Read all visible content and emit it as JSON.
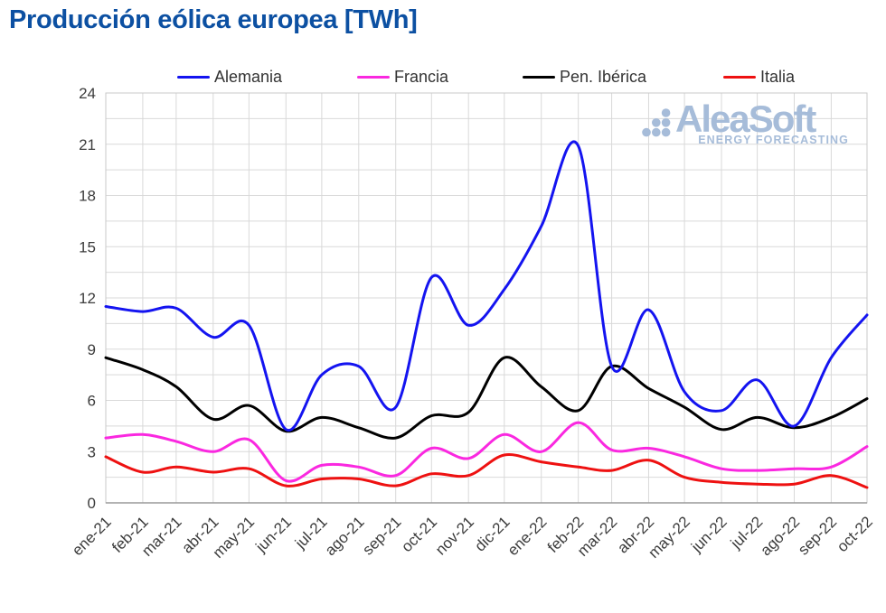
{
  "title": "Producción eólica europea [TWh]",
  "logo": {
    "brand": "AleaSoft",
    "tagline": "ENERGY FORECASTING"
  },
  "colors": {
    "title": "#0c50a2",
    "axis_text": "#3c3c3c",
    "legend_text": "#333333",
    "grid": "#d9d9d9",
    "plot_border": "#c9c9c9",
    "axis_line": "#9a9a9a",
    "logo": "#a6bcd9"
  },
  "chart_data": {
    "type": "line",
    "title": "Producción eólica europea [TWh]",
    "categories": [
      "ene-21",
      "feb-21",
      "mar-21",
      "abr-21",
      "may-21",
      "jun-21",
      "jul-21",
      "ago-21",
      "sep-21",
      "oct-21",
      "nov-21",
      "dic-21",
      "ene-22",
      "feb-22",
      "mar-22",
      "abr-22",
      "may-22",
      "jun-22",
      "jul-22",
      "ago-22",
      "sep-22",
      "oct-22"
    ],
    "series": [
      {
        "name": "Alemania",
        "color": "#1414f0",
        "values": [
          11.5,
          11.2,
          11.4,
          9.7,
          10.4,
          4.3,
          7.5,
          8.0,
          5.6,
          13.2,
          10.4,
          12.5,
          16.2,
          20.9,
          8.0,
          11.3,
          6.5,
          5.4,
          7.2,
          4.5,
          8.5,
          11.0
        ]
      },
      {
        "name": "Francia",
        "color": "#fa28e0",
        "values": [
          3.8,
          4.0,
          3.6,
          3.0,
          3.7,
          1.3,
          2.2,
          2.1,
          1.6,
          3.2,
          2.6,
          4.0,
          3.0,
          4.7,
          3.1,
          3.2,
          2.7,
          2.0,
          1.9,
          2.0,
          2.1,
          3.3
        ]
      },
      {
        "name": "Pen. Ibérica",
        "color": "#000000",
        "values": [
          8.5,
          7.8,
          6.8,
          4.9,
          5.7,
          4.2,
          5.0,
          4.4,
          3.8,
          5.1,
          5.3,
          8.5,
          6.8,
          5.4,
          8.0,
          6.7,
          5.6,
          4.3,
          5.0,
          4.4,
          5.0,
          6.1
        ]
      },
      {
        "name": "Italia",
        "color": "#ee1111",
        "values": [
          2.7,
          1.8,
          2.1,
          1.8,
          2.0,
          1.0,
          1.4,
          1.4,
          1.0,
          1.7,
          1.6,
          2.8,
          2.4,
          2.1,
          1.9,
          2.5,
          1.5,
          1.2,
          1.1,
          1.1,
          1.6,
          0.9
        ]
      }
    ],
    "ylim": [
      0,
      24
    ],
    "yticks": [
      0,
      3,
      6,
      9,
      12,
      15,
      18,
      21,
      24
    ],
    "minor_grid_step": 1.5,
    "grid": "on",
    "legend_position": "top",
    "x_type": "datetime-monthly",
    "x_day_offsets": [
      0,
      31,
      59,
      90,
      120,
      151,
      181,
      212,
      243,
      273,
      304,
      334,
      365,
      396,
      424,
      455,
      485,
      516,
      546,
      577,
      608,
      638
    ],
    "xlabel": "",
    "ylabel": ""
  }
}
